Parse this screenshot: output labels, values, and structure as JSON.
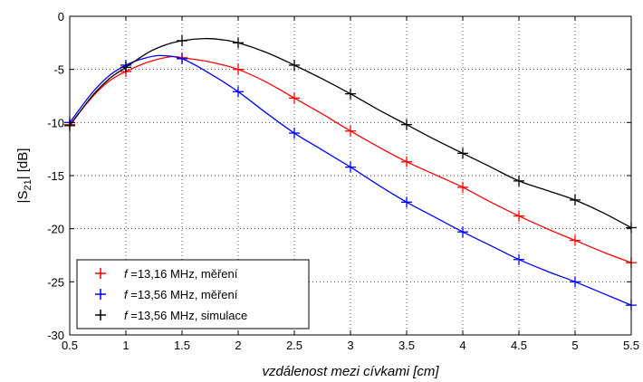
{
  "chart_data": {
    "type": "line",
    "xlabel": "vzdálenost mezi cívkami [cm]",
    "ylabel": "|S21| [dB]",
    "ylabel_main": "|S",
    "ylabel_sub": "21",
    "ylabel_rest": "| [dB]",
    "xlim": [
      0.5,
      5.5
    ],
    "ylim": [
      -30,
      0
    ],
    "xticks": [
      0.5,
      1,
      1.5,
      2,
      2.5,
      3,
      3.5,
      4,
      4.5,
      5,
      5.5
    ],
    "xtick_labels": [
      "0.5",
      "1",
      "1.5",
      "2",
      "2.5",
      "3",
      "3.5",
      "4",
      "4.5",
      "5",
      "5.5"
    ],
    "yticks": [
      0,
      -5,
      -10,
      -15,
      -20,
      -25,
      -30
    ],
    "ytick_labels": [
      "0",
      "-5",
      "-10",
      "-15",
      "-20",
      "-25",
      "-30"
    ],
    "grid": true,
    "legend_position": "bottom-left",
    "series": [
      {
        "name_italic": "f",
        "name": " =13,16 MHz, měření",
        "color": "#ff0000",
        "x": [
          0.5,
          1,
          1.5,
          2,
          2.5,
          3,
          3.5,
          4,
          4.5,
          5,
          5.5
        ],
        "y": [
          -10.2,
          -5.2,
          -3.9,
          -5.0,
          -7.7,
          -10.8,
          -13.7,
          -16.1,
          -18.8,
          -21.1,
          -23.2
        ],
        "curve": [
          [
            0.5,
            -10.2
          ],
          [
            0.7,
            -7.6
          ],
          [
            0.85,
            -6.1
          ],
          [
            1,
            -5.2
          ],
          [
            1.2,
            -4.3
          ],
          [
            1.4,
            -3.8
          ],
          [
            1.5,
            -3.9
          ],
          [
            1.75,
            -4.3
          ],
          [
            2,
            -5.0
          ],
          [
            2.25,
            -6.2
          ],
          [
            2.5,
            -7.7
          ],
          [
            2.75,
            -9.2
          ],
          [
            3,
            -10.8
          ],
          [
            3.25,
            -12.3
          ],
          [
            3.5,
            -13.7
          ],
          [
            3.75,
            -14.9
          ],
          [
            4,
            -16.1
          ],
          [
            4.25,
            -17.5
          ],
          [
            4.5,
            -18.8
          ],
          [
            4.75,
            -20.0
          ],
          [
            5,
            -21.1
          ],
          [
            5.25,
            -22.2
          ],
          [
            5.5,
            -23.2
          ]
        ]
      },
      {
        "name_italic": "f",
        "name": " =13,56 MHz, měření",
        "color": "#0000ff",
        "x": [
          0.5,
          1,
          1.5,
          2,
          2.5,
          3,
          3.5,
          4,
          4.5,
          5,
          5.5
        ],
        "y": [
          -10.0,
          -4.6,
          -4.0,
          -7.1,
          -11.0,
          -14.2,
          -17.5,
          -20.3,
          -22.9,
          -25.0,
          -27.2
        ],
        "curve": [
          [
            0.5,
            -10.0
          ],
          [
            0.7,
            -7.2
          ],
          [
            0.85,
            -5.6
          ],
          [
            1,
            -4.6
          ],
          [
            1.15,
            -4.0
          ],
          [
            1.3,
            -3.7
          ],
          [
            1.5,
            -4.0
          ],
          [
            1.75,
            -5.4
          ],
          [
            2,
            -7.1
          ],
          [
            2.25,
            -9.1
          ],
          [
            2.5,
            -11.0
          ],
          [
            2.75,
            -12.6
          ],
          [
            3,
            -14.2
          ],
          [
            3.25,
            -15.9
          ],
          [
            3.5,
            -17.5
          ],
          [
            3.75,
            -18.9
          ],
          [
            4,
            -20.3
          ],
          [
            4.25,
            -21.6
          ],
          [
            4.5,
            -22.9
          ],
          [
            4.75,
            -24.0
          ],
          [
            5,
            -25.0
          ],
          [
            5.25,
            -26.1
          ],
          [
            5.5,
            -27.2
          ]
        ]
      },
      {
        "name_italic": "f",
        "name": " =13,56 MHz, simulace",
        "color": "#000000",
        "x": [
          0.5,
          1,
          1.5,
          2,
          2.5,
          3,
          3.5,
          4,
          4.5,
          5,
          5.5
        ],
        "y": [
          -10.3,
          -4.8,
          -2.3,
          -2.5,
          -4.6,
          -7.3,
          -10.2,
          -12.9,
          -15.5,
          -17.3,
          -19.9
        ],
        "curve": [
          [
            0.5,
            -10.3
          ],
          [
            0.7,
            -7.5
          ],
          [
            0.85,
            -5.9
          ],
          [
            1,
            -4.8
          ],
          [
            1.2,
            -3.4
          ],
          [
            1.35,
            -2.7
          ],
          [
            1.5,
            -2.3
          ],
          [
            1.7,
            -2.1
          ],
          [
            1.85,
            -2.2
          ],
          [
            2,
            -2.5
          ],
          [
            2.25,
            -3.4
          ],
          [
            2.5,
            -4.6
          ],
          [
            2.75,
            -5.9
          ],
          [
            3,
            -7.3
          ],
          [
            3.25,
            -8.8
          ],
          [
            3.5,
            -10.2
          ],
          [
            3.75,
            -11.6
          ],
          [
            4,
            -12.9
          ],
          [
            4.25,
            -14.2
          ],
          [
            4.5,
            -15.5
          ],
          [
            4.75,
            -16.4
          ],
          [
            5,
            -17.3
          ],
          [
            5.25,
            -18.5
          ],
          [
            5.5,
            -19.9
          ]
        ]
      }
    ]
  }
}
